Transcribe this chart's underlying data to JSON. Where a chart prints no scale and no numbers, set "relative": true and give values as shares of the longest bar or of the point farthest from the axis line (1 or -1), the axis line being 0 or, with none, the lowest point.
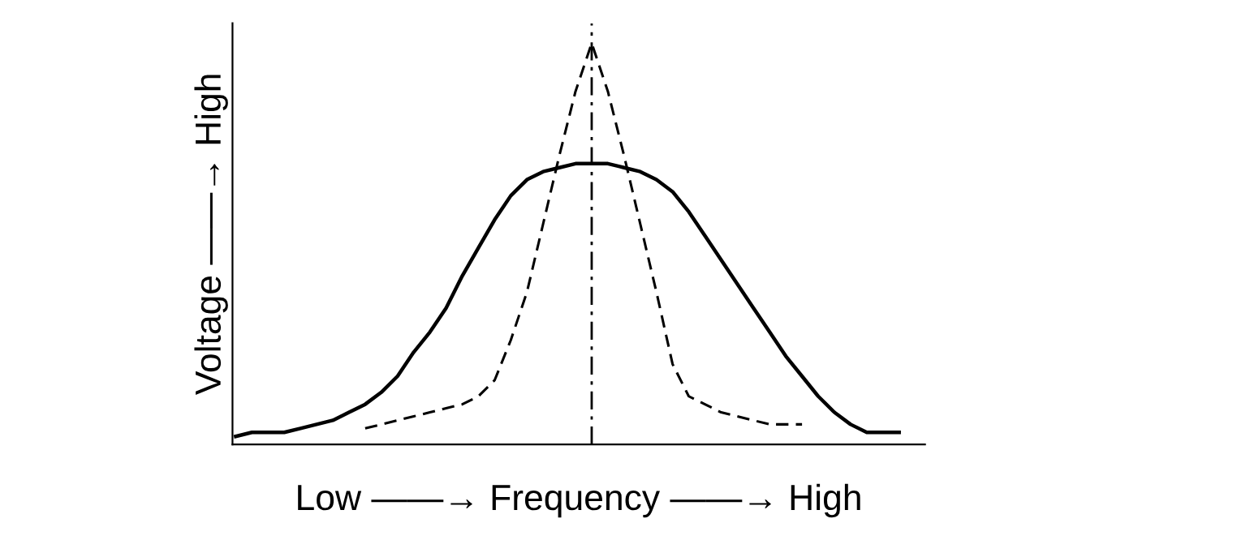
{
  "chart_data": {
    "type": "line",
    "relative": true,
    "xlabel": "Low ——→ Frequency ——→ High",
    "ylabel": "Voltage ——→ High",
    "grid": false,
    "legend": false,
    "marker": "none",
    "categories": [
      null,
      null,
      null,
      null,
      null,
      null,
      null,
      null,
      null,
      null,
      null,
      null,
      null,
      null,
      null,
      null,
      null,
      null,
      null,
      null,
      null,
      null,
      null,
      null,
      null,
      null,
      null,
      null,
      null,
      null,
      null,
      null,
      null,
      null,
      null,
      null,
      null,
      null,
      null,
      null,
      null,
      null,
      null
    ],
    "series": [
      {
        "color": "#000000",
        "line_style": "solid",
        "values": [
          0.02,
          0.03,
          0.03,
          0.03,
          0.04,
          0.05,
          0.06,
          0.08,
          0.1,
          0.13,
          0.17,
          0.23,
          0.28,
          0.34,
          0.42,
          0.49,
          0.56,
          0.62,
          0.66,
          0.68,
          0.69,
          0.7,
          0.7,
          0.7,
          0.69,
          0.68,
          0.66,
          0.63,
          0.58,
          0.52,
          0.46,
          0.4,
          0.34,
          0.28,
          0.22,
          0.17,
          0.12,
          0.08,
          0.05,
          0.03,
          0.03,
          0.03,
          null
        ]
      },
      {
        "color": "#000000",
        "line_style": "dashed",
        "values": [
          null,
          null,
          null,
          null,
          null,
          null,
          null,
          null,
          0.04,
          0.05,
          0.06,
          0.07,
          0.08,
          0.09,
          0.1,
          0.12,
          0.16,
          0.26,
          0.38,
          0.55,
          0.72,
          0.88,
          1.0,
          0.88,
          0.72,
          0.55,
          0.38,
          0.2,
          0.12,
          0.1,
          0.08,
          0.07,
          0.06,
          0.05,
          0.05,
          0.05,
          null,
          null,
          null,
          null,
          null,
          null,
          null
        ]
      }
    ]
  }
}
